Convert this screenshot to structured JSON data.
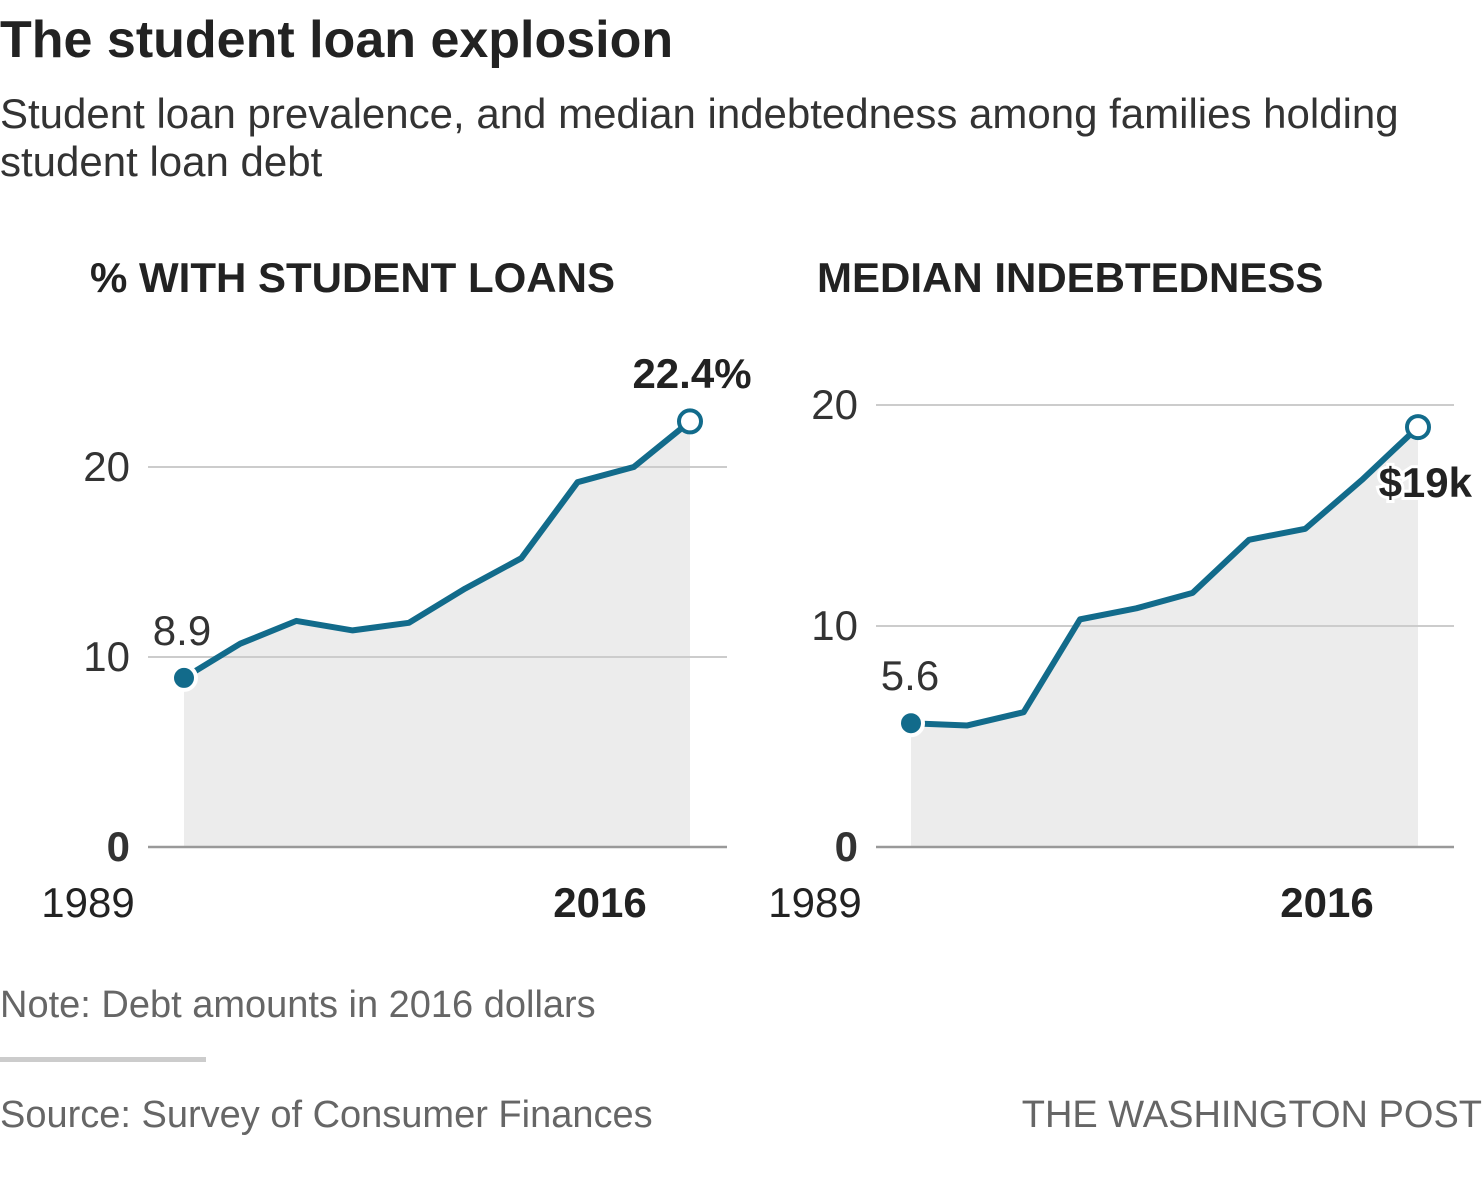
{
  "header": {
    "title": "The student loan explosion",
    "subtitle": "Student loan prevalence, and median indebtedness among families holding student loan debt"
  },
  "footer": {
    "note": "Note: Debt amounts in 2016 dollars",
    "source": "Source: Survey of Consumer Finances",
    "credit": "THE WASHINGTON POST"
  },
  "colors": {
    "line": "#126b8b",
    "area": "#ececec",
    "grid": "#cccccc",
    "axis": "#999999",
    "text": "#222222"
  },
  "chart_data": [
    {
      "type": "area",
      "title": "% WITH STUDENT LOANS",
      "x": [
        1989,
        1992,
        1995,
        1998,
        2001,
        2004,
        2007,
        2010,
        2013,
        2016
      ],
      "series": [
        {
          "values": [
            8.9,
            10.7,
            11.9,
            11.4,
            11.8,
            13.6,
            15.2,
            19.2,
            20.0,
            22.4
          ]
        }
      ],
      "ylim": [
        0,
        20
      ],
      "yticks": [
        "0",
        "10",
        "20"
      ],
      "xticks": [
        "1989",
        "2016"
      ],
      "start_label": "8.9",
      "end_label": "22.4%",
      "grid": true
    },
    {
      "type": "area",
      "title": "MEDIAN INDEBTEDNESS",
      "x": [
        1989,
        1992,
        1995,
        1998,
        2001,
        2004,
        2007,
        2010,
        2013,
        2016
      ],
      "series": [
        {
          "values": [
            5.6,
            5.5,
            6.1,
            10.3,
            10.8,
            11.5,
            13.9,
            14.4,
            16.6,
            19.0
          ]
        }
      ],
      "ylim": [
        0,
        20
      ],
      "yticks": [
        "0",
        "10",
        "20"
      ],
      "xticks": [
        "1989",
        "2016"
      ],
      "start_label": "5.6",
      "end_label": "$19k",
      "grid": true
    }
  ]
}
